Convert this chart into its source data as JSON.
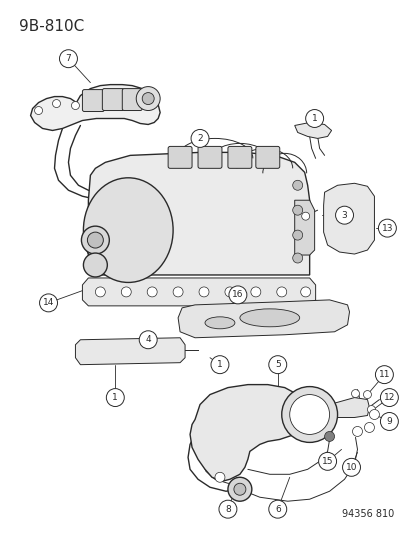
{
  "title_code": "9B-810C",
  "part_number": "94356 810",
  "bg_color": "#ffffff",
  "line_color": "#2a2a2a",
  "label_color": "#2a2a2a",
  "title_fontsize": 11,
  "label_fontsize": 7,
  "fig_width": 4.14,
  "fig_height": 5.33,
  "dpi": 100
}
